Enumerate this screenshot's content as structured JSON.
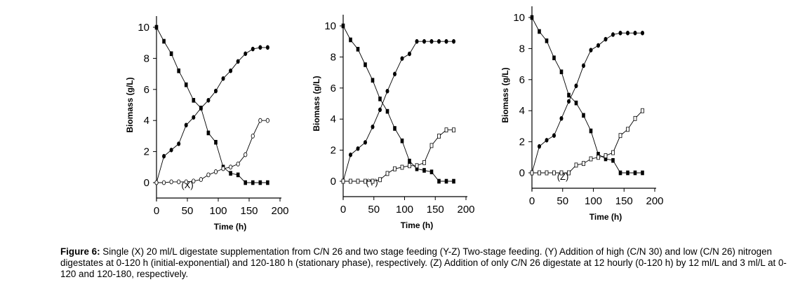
{
  "chart_data": [
    {
      "type": "line",
      "panel": "X",
      "ylabel": "Biomass (g/L)",
      "xlabel": "Time (h)",
      "xlim": [
        0,
        200
      ],
      "ylim": [
        0,
        10
      ],
      "xticks": [
        0,
        50,
        100,
        150,
        200
      ],
      "yticks": [
        0,
        2,
        4,
        6,
        8,
        10
      ],
      "series": [
        {
          "marker": "filled-square",
          "x": [
            0,
            12,
            24,
            36,
            48,
            60,
            72,
            84,
            96,
            108,
            120,
            132,
            144,
            156,
            168,
            180
          ],
          "y": [
            10,
            9.1,
            8.3,
            7.2,
            6.3,
            5.3,
            4.8,
            3.2,
            2.6,
            1.0,
            0.6,
            0.5,
            0.0,
            0.0,
            0.0,
            0.0
          ]
        },
        {
          "marker": "filled-circle",
          "x": [
            0,
            12,
            24,
            36,
            48,
            60,
            72,
            84,
            96,
            108,
            120,
            132,
            144,
            156,
            168,
            180
          ],
          "y": [
            0.0,
            1.7,
            2.1,
            2.5,
            3.7,
            4.2,
            4.8,
            5.3,
            5.9,
            6.7,
            7.2,
            7.8,
            8.3,
            8.6,
            8.7,
            8.7
          ]
        },
        {
          "marker": "open-circle",
          "x": [
            0,
            12,
            24,
            36,
            48,
            60,
            72,
            84,
            96,
            108,
            120,
            132,
            144,
            156,
            168,
            180
          ],
          "y": [
            0.0,
            0.0,
            0.05,
            0.05,
            0.05,
            0.1,
            0.2,
            0.5,
            0.7,
            0.9,
            1.0,
            1.2,
            1.8,
            3.0,
            4.0,
            4.0
          ]
        }
      ]
    },
    {
      "type": "line",
      "panel": "Y",
      "ylabel": "Biomass (g/L)",
      "xlabel": "Time (h)",
      "xlim": [
        0,
        200
      ],
      "ylim": [
        0,
        10
      ],
      "xticks": [
        0,
        50,
        100,
        150,
        200
      ],
      "yticks": [
        0,
        2,
        4,
        6,
        8,
        10
      ],
      "series": [
        {
          "marker": "filled-square",
          "x": [
            0,
            12,
            24,
            36,
            48,
            60,
            72,
            84,
            96,
            108,
            120,
            132,
            144,
            156,
            168,
            180
          ],
          "y": [
            10,
            9.1,
            8.5,
            7.5,
            6.5,
            5.3,
            4.5,
            3.4,
            2.6,
            1.3,
            0.8,
            0.7,
            0.6,
            0.0,
            0.0,
            0.0
          ]
        },
        {
          "marker": "filled-circle",
          "x": [
            0,
            12,
            24,
            36,
            48,
            60,
            72,
            84,
            96,
            108,
            120,
            132,
            144,
            156,
            168,
            180
          ],
          "y": [
            0.0,
            1.7,
            2.1,
            2.5,
            3.5,
            4.6,
            5.8,
            6.9,
            7.9,
            8.2,
            9.0,
            9.0,
            9.0,
            9.0,
            9.0,
            9.0
          ]
        },
        {
          "marker": "open-square",
          "x": [
            0,
            12,
            24,
            36,
            48,
            60,
            72,
            84,
            96,
            108,
            120,
            132,
            144,
            156,
            168,
            180
          ],
          "y": [
            0.0,
            0.0,
            0.0,
            0.0,
            0.0,
            0.1,
            0.5,
            0.8,
            0.9,
            1.0,
            1.0,
            1.2,
            2.3,
            2.9,
            3.3,
            3.3
          ]
        }
      ]
    },
    {
      "type": "line",
      "panel": "Z",
      "ylabel": "Biomass (g/L)",
      "xlabel": "Time (h)",
      "xlim": [
        0,
        200
      ],
      "ylim": [
        0,
        10
      ],
      "xticks": [
        0,
        50,
        100,
        150,
        200
      ],
      "yticks": [
        0,
        2,
        4,
        6,
        8,
        10
      ],
      "series": [
        {
          "marker": "filled-square",
          "x": [
            0,
            12,
            24,
            36,
            48,
            60,
            72,
            84,
            96,
            108,
            120,
            132,
            144,
            156,
            168,
            180
          ],
          "y": [
            10,
            9.1,
            8.5,
            7.4,
            6.5,
            5.0,
            4.5,
            3.7,
            2.7,
            1.2,
            0.9,
            0.8,
            0.0,
            0.0,
            0.0,
            0.0
          ]
        },
        {
          "marker": "filled-circle",
          "x": [
            0,
            12,
            24,
            36,
            48,
            60,
            72,
            84,
            96,
            108,
            120,
            132,
            144,
            156,
            168,
            180
          ],
          "y": [
            0.0,
            1.7,
            2.1,
            2.4,
            3.5,
            4.6,
            5.6,
            6.9,
            7.9,
            8.2,
            8.6,
            8.9,
            9.0,
            9.0,
            9.0,
            9.0
          ]
        },
        {
          "marker": "open-square",
          "x": [
            0,
            12,
            24,
            36,
            48,
            60,
            72,
            84,
            96,
            108,
            120,
            132,
            144,
            156,
            168,
            180
          ],
          "y": [
            0.0,
            0.0,
            0.0,
            0.0,
            0.0,
            0.0,
            0.5,
            0.6,
            0.9,
            1.0,
            1.1,
            1.3,
            2.4,
            2.8,
            3.5,
            4.0
          ]
        }
      ]
    }
  ],
  "caption": {
    "figure_label": "Figure 6:",
    "text": " Single (X) 20 ml/L digestate supplementation from C/N 26 and two stage feeding (Y-Z) Two-stage feeding. (Y) Addition of high (C/N 30) and low (C/N 26) nitrogen digestates at 0-120 h (initial-exponential) and 120-180 h (stationary phase), respectively. (Z) Addition of only C/N 26 digestate at 12 hourly (0-120 h) by 12 ml/L and 3 ml/L at 0-120 and 120-180, respectively."
  }
}
